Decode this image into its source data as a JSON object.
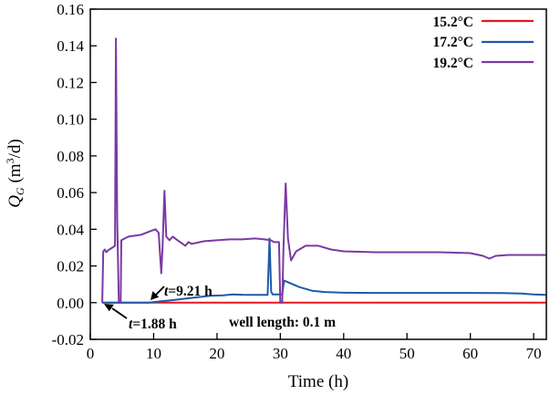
{
  "chart_data": {
    "type": "line",
    "xlabel": "Time (h)",
    "ylabel_main": "Q",
    "ylabel_sub": "G",
    "ylabel_rest": " (m",
    "ylabel_sup": "3",
    "ylabel_end": "/d)",
    "xlim": [
      0,
      72
    ],
    "ylim": [
      -0.02,
      0.16
    ],
    "xticks": [
      0,
      10,
      20,
      30,
      40,
      50,
      60,
      70
    ],
    "xtick_labels": [
      "0",
      "10",
      "20",
      "30",
      "40",
      "50",
      "60",
      "70"
    ],
    "yticks": [
      -0.02,
      0.0,
      0.02,
      0.04,
      0.06,
      0.08,
      0.1,
      0.12,
      0.14,
      0.16
    ],
    "ytick_labels": [
      "-0.02",
      "0.00",
      "0.02",
      "0.04",
      "0.06",
      "0.08",
      "0.10",
      "0.12",
      "0.14",
      "0.16"
    ],
    "grid": false,
    "legend_position": "top-right",
    "series": [
      {
        "name": "15.2°C",
        "color": "#e8161f",
        "points": [
          [
            1.9,
            0.0
          ],
          [
            72,
            0.0
          ]
        ]
      },
      {
        "name": "17.2°C",
        "color": "#1f5aa6",
        "points": [
          [
            1.88,
            0.0
          ],
          [
            9.21,
            0.0
          ],
          [
            11,
            0.0007
          ],
          [
            13,
            0.0014
          ],
          [
            15,
            0.0022
          ],
          [
            17,
            0.003
          ],
          [
            19,
            0.0037
          ],
          [
            21,
            0.004
          ],
          [
            22.5,
            0.0045
          ],
          [
            24,
            0.0043
          ],
          [
            26,
            0.0042
          ],
          [
            28,
            0.0042
          ],
          [
            28.3,
            0.035
          ],
          [
            28.55,
            0.006
          ],
          [
            28.8,
            0.0045
          ],
          [
            30.3,
            0.0045
          ],
          [
            30.6,
            0.012
          ],
          [
            33,
            0.0085
          ],
          [
            35,
            0.0065
          ],
          [
            37,
            0.0058
          ],
          [
            40,
            0.0054
          ],
          [
            45,
            0.0053
          ],
          [
            50,
            0.0053
          ],
          [
            55,
            0.0053
          ],
          [
            60,
            0.0053
          ],
          [
            65,
            0.0052
          ],
          [
            68,
            0.005
          ],
          [
            70,
            0.0045
          ],
          [
            72,
            0.0042
          ]
        ]
      },
      {
        "name": "19.2°C",
        "color": "#7a3aa3",
        "points": [
          [
            1.88,
            0.0
          ],
          [
            2.05,
            0.028
          ],
          [
            2.3,
            0.029
          ],
          [
            2.5,
            0.0275
          ],
          [
            3.0,
            0.029
          ],
          [
            3.5,
            0.03
          ],
          [
            3.9,
            0.031
          ],
          [
            4.05,
            0.144
          ],
          [
            4.25,
            0.045
          ],
          [
            4.5,
            0.0
          ],
          [
            4.8,
            0.0
          ],
          [
            4.9,
            0.034
          ],
          [
            6,
            0.036
          ],
          [
            8,
            0.037
          ],
          [
            9.5,
            0.039
          ],
          [
            10.3,
            0.04
          ],
          [
            10.8,
            0.038
          ],
          [
            11.2,
            0.016
          ],
          [
            11.4,
            0.03
          ],
          [
            11.7,
            0.061
          ],
          [
            12.0,
            0.036
          ],
          [
            12.5,
            0.034
          ],
          [
            13,
            0.036
          ],
          [
            14,
            0.0335
          ],
          [
            15,
            0.031
          ],
          [
            15.5,
            0.033
          ],
          [
            16,
            0.032
          ],
          [
            18,
            0.0335
          ],
          [
            20,
            0.034
          ],
          [
            22,
            0.0345
          ],
          [
            24,
            0.0345
          ],
          [
            26,
            0.035
          ],
          [
            27.5,
            0.0345
          ],
          [
            28.5,
            0.034
          ],
          [
            29,
            0.033
          ],
          [
            29.8,
            0.033
          ],
          [
            30.0,
            0.0
          ],
          [
            30.3,
            0.0
          ],
          [
            30.5,
            0.03
          ],
          [
            30.85,
            0.065
          ],
          [
            31.2,
            0.035
          ],
          [
            31.7,
            0.023
          ],
          [
            32.5,
            0.028
          ],
          [
            34,
            0.031
          ],
          [
            36,
            0.031
          ],
          [
            38,
            0.029
          ],
          [
            40,
            0.028
          ],
          [
            45,
            0.0275
          ],
          [
            50,
            0.0275
          ],
          [
            55,
            0.0275
          ],
          [
            60,
            0.027
          ],
          [
            62,
            0.0255
          ],
          [
            63,
            0.024
          ],
          [
            64,
            0.0255
          ],
          [
            66,
            0.026
          ],
          [
            68,
            0.026
          ],
          [
            70,
            0.026
          ],
          [
            72,
            0.026
          ]
        ]
      }
    ],
    "annotations": {
      "t2_label": "=9.21 h",
      "t1_label": "=1.88 h",
      "t_symbol": "t",
      "well_length": "well length: 0.1 m"
    }
  }
}
